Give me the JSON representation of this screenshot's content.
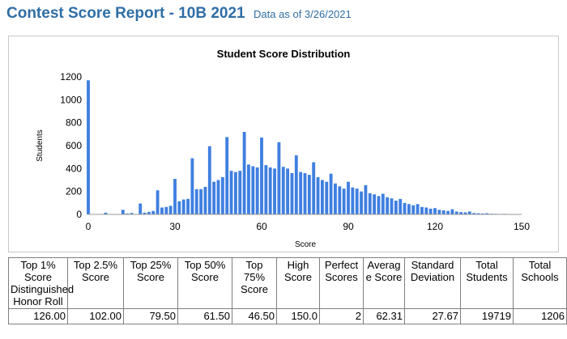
{
  "report": {
    "title": "Contest Score Report -  10B 2021",
    "subtitle": "Data as of 3/26/2021"
  },
  "colors": {
    "bar": "#3f7fe0",
    "title": "#2f6ea6"
  },
  "chart_data": {
    "type": "bar",
    "title": "Student Score Distribution",
    "xlabel": "Score",
    "ylabel": "Students",
    "xlim": [
      0,
      150
    ],
    "ylim": [
      0,
      1200
    ],
    "xticks": [
      0,
      30,
      60,
      90,
      120,
      150
    ],
    "yticks": [
      0,
      200,
      400,
      600,
      800,
      1000,
      1200
    ],
    "grid": false,
    "legend": "none",
    "x": [
      0,
      6,
      12,
      13.5,
      15,
      18,
      19.5,
      21,
      22.5,
      24,
      25.5,
      27,
      28.5,
      30,
      31.5,
      33,
      34.5,
      36,
      37.5,
      39,
      40.5,
      42,
      43.5,
      45,
      46.5,
      48,
      49.5,
      51,
      52.5,
      54,
      55.5,
      57,
      58.5,
      60,
      61.5,
      63,
      64.5,
      66,
      67.5,
      69,
      70.5,
      72,
      73.5,
      75,
      76.5,
      78,
      79.5,
      81,
      82.5,
      84,
      85.5,
      87,
      88.5,
      90,
      91.5,
      93,
      94.5,
      96,
      97.5,
      99,
      100.5,
      102,
      103.5,
      105,
      106.5,
      108,
      109.5,
      111,
      112.5,
      114,
      115.5,
      117,
      118.5,
      120,
      121.5,
      123,
      124.5,
      126,
      127.5,
      129,
      130.5,
      132,
      133.5,
      135,
      136.5,
      138,
      139.5,
      141,
      142.5,
      144,
      145.5,
      147
    ],
    "values": [
      1170,
      15,
      40,
      8,
      12,
      95,
      15,
      22,
      30,
      210,
      60,
      65,
      75,
      310,
      115,
      130,
      135,
      490,
      220,
      220,
      240,
      595,
      285,
      300,
      325,
      675,
      380,
      370,
      380,
      720,
      435,
      420,
      410,
      670,
      430,
      410,
      400,
      630,
      415,
      400,
      360,
      515,
      370,
      360,
      345,
      455,
      325,
      300,
      285,
      355,
      270,
      245,
      225,
      285,
      235,
      225,
      200,
      255,
      185,
      175,
      160,
      180,
      150,
      140,
      120,
      135,
      100,
      90,
      80,
      90,
      65,
      60,
      50,
      55,
      40,
      35,
      30,
      45,
      25,
      20,
      18,
      25,
      12,
      10,
      8,
      10,
      6,
      5,
      4,
      5,
      3,
      2
    ]
  },
  "table": {
    "headers": [
      "Top 1% Score Distinguished Honor Roll",
      "Top 2.5% Score",
      "Top 25% Score",
      "Top 50% Score",
      "Top 75% Score",
      "High Score",
      "Perfect Scores",
      "Averag e Score",
      "Standard Deviation",
      "Total Students",
      "Total Schools"
    ],
    "values": [
      "126.00",
      "102.00",
      "79.50",
      "61.50",
      "46.50",
      "150.0",
      "2",
      "62.31",
      "27.67",
      "19719",
      "1206"
    ]
  }
}
